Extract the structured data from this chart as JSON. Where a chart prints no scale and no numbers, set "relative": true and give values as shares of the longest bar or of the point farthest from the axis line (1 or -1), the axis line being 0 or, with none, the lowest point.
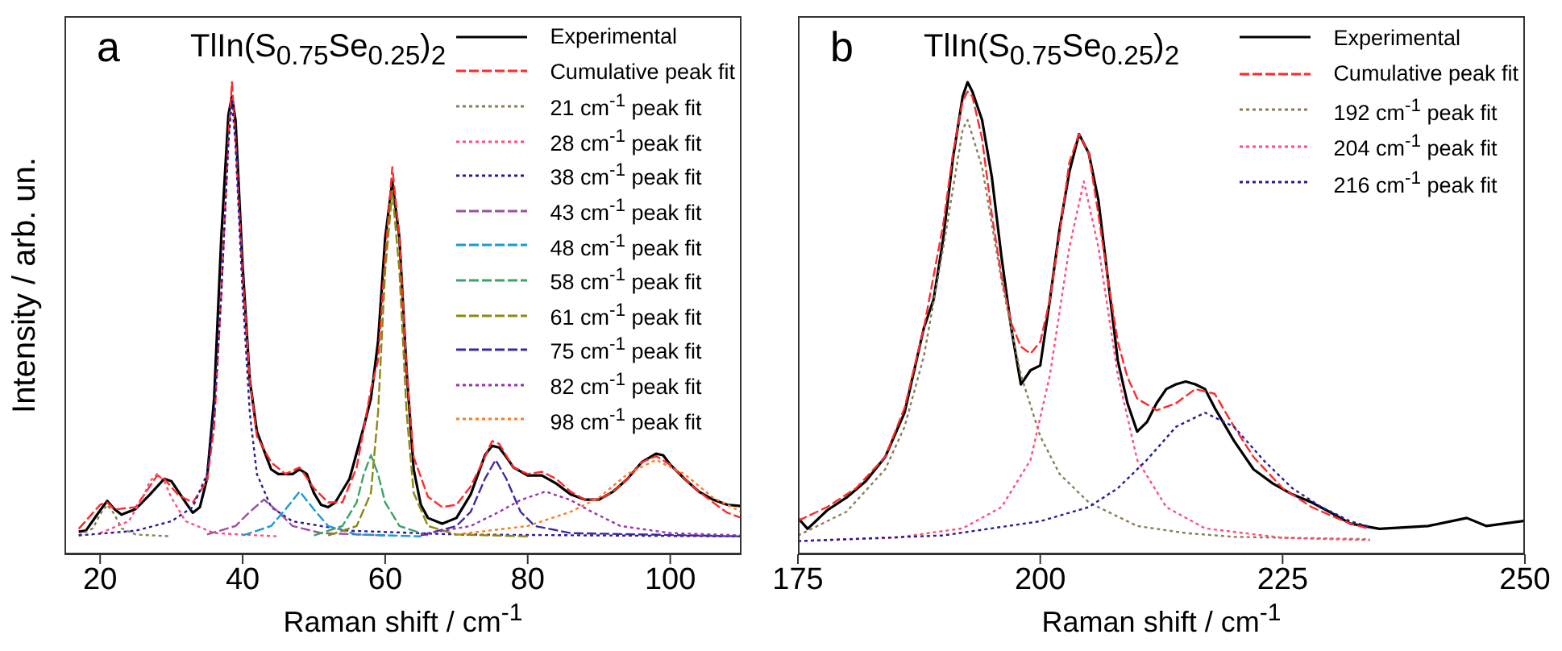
{
  "chart_data": [
    {
      "type": "line",
      "title": "TlIn(S$_{0.75}$Se$_{0.25}$)$_{2}$",
      "annotations": [
        "a"
      ],
      "xlabel": "Raman shift / cm$^{-1}$",
      "ylabel": "Intensity / arb. un.",
      "relative": true,
      "xlim": [
        15,
        110
      ],
      "xticks": [
        20,
        40,
        60,
        80,
        100
      ],
      "legend": "top right",
      "series": [
        {
          "name": "Experimental",
          "color": "#000000",
          "line_style": "solid",
          "x": [
            17,
            18,
            20,
            21,
            22,
            23,
            25,
            27,
            29,
            30,
            32,
            33,
            34,
            35,
            36,
            37,
            38,
            38.5,
            39,
            40,
            41,
            42,
            43,
            44,
            45,
            46,
            47,
            48,
            49,
            50,
            51,
            52,
            53,
            55,
            57,
            58,
            59,
            60,
            61,
            62,
            63,
            64,
            65,
            66,
            68,
            70,
            72,
            74,
            75,
            76,
            77,
            78,
            80,
            82,
            84,
            86,
            88,
            90,
            92,
            94,
            96,
            98,
            99,
            100,
            102,
            104,
            106,
            108,
            110
          ],
          "values": [
            0.048,
            0.05,
            0.093,
            0.113,
            0.096,
            0.084,
            0.096,
            0.127,
            0.16,
            0.155,
            0.11,
            0.088,
            0.1,
            0.16,
            0.33,
            0.67,
            0.93,
            0.97,
            0.92,
            0.61,
            0.37,
            0.26,
            0.22,
            0.18,
            0.17,
            0.17,
            0.17,
            0.18,
            0.17,
            0.13,
            0.105,
            0.1,
            0.11,
            0.16,
            0.27,
            0.33,
            0.45,
            0.67,
            0.79,
            0.67,
            0.39,
            0.18,
            0.105,
            0.077,
            0.065,
            0.077,
            0.127,
            0.21,
            0.23,
            0.226,
            0.206,
            0.184,
            0.167,
            0.167,
            0.15,
            0.127,
            0.116,
            0.116,
            0.133,
            0.16,
            0.195,
            0.213,
            0.21,
            0.19,
            0.16,
            0.133,
            0.116,
            0.105,
            0.102
          ]
        },
        {
          "name": "Cumulative peak fit",
          "color": "#ff2a2a",
          "line_style": "dashed",
          "x": [
            17,
            20,
            21,
            22,
            25,
            28,
            29,
            31,
            33,
            35,
            36,
            37,
            38,
            38.5,
            39,
            40,
            41,
            42,
            44,
            46,
            48,
            50,
            52,
            54,
            56,
            58,
            59,
            60,
            61,
            62,
            63,
            64,
            66,
            68,
            70,
            72,
            74,
            75,
            76,
            78,
            80,
            82,
            84,
            86,
            88,
            90,
            92,
            94,
            96,
            98,
            100,
            102,
            104,
            106,
            108,
            110
          ],
          "values": [
            0.054,
            0.105,
            0.11,
            0.095,
            0.1,
            0.167,
            0.16,
            0.125,
            0.11,
            0.155,
            0.27,
            0.55,
            0.88,
            1,
            0.88,
            0.59,
            0.37,
            0.25,
            0.195,
            0.17,
            0.184,
            0.14,
            0.11,
            0.11,
            0.184,
            0.35,
            0.41,
            0.63,
            0.82,
            0.67,
            0.39,
            0.206,
            0.122,
            0.1,
            0.105,
            0.144,
            0.206,
            0.24,
            0.234,
            0.184,
            0.17,
            0.175,
            0.16,
            0.133,
            0.116,
            0.116,
            0.133,
            0.16,
            0.195,
            0.208,
            0.19,
            0.16,
            0.133,
            0.11,
            0.088,
            0.077
          ]
        },
        {
          "name": "21 cm$^{-1}$ peak fit",
          "color": "#8b7d5a",
          "line_style": "dotted",
          "x": [
            17,
            19,
            20,
            21,
            22,
            23,
            25,
            30
          ],
          "values": [
            0.04,
            0.055,
            0.085,
            0.105,
            0.085,
            0.055,
            0.042,
            0.038
          ]
        },
        {
          "name": "28 cm$^{-1}$ peak fit",
          "color": "#ff4f7b",
          "line_style": "dotted",
          "x": [
            20,
            24,
            26,
            27,
            28,
            29,
            30,
            32,
            36,
            45
          ],
          "values": [
            0.045,
            0.07,
            0.12,
            0.155,
            0.17,
            0.155,
            0.12,
            0.07,
            0.045,
            0.038
          ]
        },
        {
          "name": "38 cm$^{-1}$ peak fit",
          "color": "#2a1a9a",
          "line_style": "dotted",
          "x": [
            17,
            25,
            30,
            33,
            35,
            36,
            37,
            38,
            38.5,
            39,
            40,
            41,
            42,
            44,
            47,
            55,
            70,
            110
          ],
          "values": [
            0.04,
            0.05,
            0.07,
            0.1,
            0.17,
            0.3,
            0.55,
            0.87,
            0.96,
            0.87,
            0.55,
            0.3,
            0.17,
            0.1,
            0.07,
            0.05,
            0.042,
            0.038
          ]
        },
        {
          "name": "43 cm$^{-1}$ peak fit",
          "color": "#9c4fa0",
          "line_style": "dashed",
          "x": [
            35,
            39,
            41,
            43,
            45,
            47,
            51,
            60
          ],
          "values": [
            0.042,
            0.06,
            0.09,
            0.116,
            0.09,
            0.06,
            0.045,
            0.04
          ]
        },
        {
          "name": "48 cm$^{-1}$ peak fit",
          "color": "#1a9ad6",
          "line_style": "dashed",
          "x": [
            40,
            44,
            46,
            48,
            50,
            52,
            56,
            65
          ],
          "values": [
            0.04,
            0.06,
            0.095,
            0.133,
            0.095,
            0.06,
            0.042,
            0.038
          ]
        },
        {
          "name": "58 cm$^{-1}$ peak fit",
          "color": "#3aa36a",
          "line_style": "dashed",
          "x": [
            50,
            54,
            56,
            57,
            58,
            59,
            60,
            62,
            66
          ],
          "values": [
            0.04,
            0.06,
            0.11,
            0.17,
            0.21,
            0.17,
            0.11,
            0.06,
            0.04
          ]
        },
        {
          "name": "61 cm$^{-1}$ peak fit",
          "color": "#8a8a10",
          "line_style": "dashed",
          "x": [
            52,
            56,
            58,
            59,
            60,
            61,
            62,
            63,
            64,
            66,
            70,
            80
          ],
          "values": [
            0.04,
            0.06,
            0.13,
            0.3,
            0.6,
            0.77,
            0.6,
            0.3,
            0.13,
            0.06,
            0.042,
            0.038
          ]
        },
        {
          "name": "75 cm$^{-1}$ peak fit",
          "color": "#3a2aa0",
          "line_style": "dashed",
          "x": [
            65,
            70,
            72,
            74,
            75.5,
            77,
            79,
            81,
            86,
            110
          ],
          "values": [
            0.04,
            0.06,
            0.09,
            0.16,
            0.2,
            0.16,
            0.09,
            0.06,
            0.045,
            0.038
          ]
        },
        {
          "name": "82 cm$^{-1}$ peak fit",
          "color": "#9a30b0",
          "line_style": "dotted",
          "x": [
            65,
            72,
            76,
            79,
            82.5,
            86,
            89,
            93,
            100,
            110
          ],
          "values": [
            0.042,
            0.06,
            0.09,
            0.115,
            0.133,
            0.115,
            0.09,
            0.06,
            0.045,
            0.04
          ]
        },
        {
          "name": "98 cm$^{-1}$ peak fit",
          "color": "#ff7a20",
          "line_style": "dotted",
          "x": [
            70,
            80,
            86,
            90,
            94,
            98,
            102,
            106,
            110
          ],
          "values": [
            0.042,
            0.06,
            0.09,
            0.12,
            0.17,
            0.2,
            0.17,
            0.12,
            0.09
          ]
        }
      ]
    },
    {
      "type": "line",
      "title": "TlIn(S$_{0.75}$Se$_{0.25}$)$_{2}$",
      "annotations": [
        "b"
      ],
      "xlabel": "Raman shift / cm$^{-1}$",
      "relative": true,
      "xlim": [
        175,
        250
      ],
      "xticks": [
        175,
        200,
        225,
        250
      ],
      "legend": "top right",
      "series": [
        {
          "name": "Experimental",
          "color": "#000000",
          "line_style": "solid",
          "x": [
            175,
            176,
            178,
            180,
            182,
            184,
            186,
            188,
            189,
            190,
            191,
            192,
            192.5,
            193,
            194,
            195,
            196,
            197,
            198,
            199,
            200,
            201,
            202,
            203,
            204,
            205,
            206,
            207,
            208,
            209,
            210,
            211,
            212,
            213,
            214,
            215,
            216,
            217,
            218,
            220,
            222,
            224,
            226,
            228,
            230,
            232,
            235,
            240,
            244,
            246,
            250
          ],
          "values": [
            0.077,
            0.054,
            0.093,
            0.12,
            0.155,
            0.206,
            0.3,
            0.48,
            0.54,
            0.67,
            0.84,
            0.97,
            1,
            0.98,
            0.92,
            0.8,
            0.63,
            0.48,
            0.36,
            0.39,
            0.4,
            0.54,
            0.69,
            0.81,
            0.89,
            0.85,
            0.75,
            0.58,
            0.41,
            0.32,
            0.26,
            0.28,
            0.32,
            0.35,
            0.36,
            0.366,
            0.36,
            0.35,
            0.31,
            0.24,
            0.18,
            0.15,
            0.127,
            0.11,
            0.088,
            0.065,
            0.054,
            0.06,
            0.077,
            0.06,
            0.071
          ]
        },
        {
          "name": "Cumulative peak fit",
          "color": "#ff2a2a",
          "line_style": "dashed",
          "x": [
            175,
            178,
            181,
            184,
            186,
            188,
            190,
            191,
            192,
            192.5,
            193,
            194,
            195,
            196,
            197,
            198,
            199,
            200,
            201,
            202,
            203,
            204,
            205,
            206,
            207,
            208,
            209,
            210,
            212,
            214,
            216,
            218,
            220,
            222,
            225,
            228,
            230,
            232,
            234
          ],
          "values": [
            0.071,
            0.1,
            0.14,
            0.206,
            0.31,
            0.48,
            0.7,
            0.85,
            0.96,
            0.98,
            0.97,
            0.88,
            0.72,
            0.59,
            0.49,
            0.44,
            0.425,
            0.45,
            0.54,
            0.68,
            0.83,
            0.89,
            0.85,
            0.72,
            0.58,
            0.45,
            0.375,
            0.33,
            0.305,
            0.32,
            0.35,
            0.34,
            0.27,
            0.206,
            0.14,
            0.1,
            0.082,
            0.065,
            0.054
          ]
        },
        {
          "name": "192 cm$^{-1}$ peak fit",
          "color": "#8b7d5a",
          "line_style": "dotted",
          "x": [
            175,
            180,
            184,
            186,
            188,
            190,
            192,
            192.5,
            194,
            196,
            198,
            200,
            202,
            205,
            210,
            215,
            220,
            234
          ],
          "values": [
            0.04,
            0.09,
            0.18,
            0.27,
            0.42,
            0.65,
            0.9,
            0.92,
            0.82,
            0.58,
            0.38,
            0.25,
            0.17,
            0.11,
            0.06,
            0.045,
            0.037,
            0.032
          ]
        },
        {
          "name": "204 cm$^{-1}$ peak fit",
          "color": "#ff4f7b",
          "line_style": "dotted",
          "x": [
            175,
            185,
            192,
            196,
            199,
            201,
            203,
            204.5,
            206,
            208,
            210,
            213,
            217,
            225,
            234
          ],
          "values": [
            0.028,
            0.035,
            0.055,
            0.1,
            0.2,
            0.38,
            0.65,
            0.79,
            0.65,
            0.38,
            0.2,
            0.1,
            0.055,
            0.035,
            0.03
          ]
        },
        {
          "name": "216 cm$^{-1}$ peak fit",
          "color": "#2a1a9a",
          "line_style": "dotted",
          "x": [
            175,
            190,
            200,
            205,
            208,
            211,
            214,
            217,
            220,
            223,
            226,
            229,
            232,
            234
          ],
          "values": [
            0.028,
            0.04,
            0.07,
            0.1,
            0.14,
            0.2,
            0.27,
            0.3,
            0.27,
            0.2,
            0.14,
            0.1,
            0.07,
            0.058
          ]
        }
      ]
    }
  ]
}
